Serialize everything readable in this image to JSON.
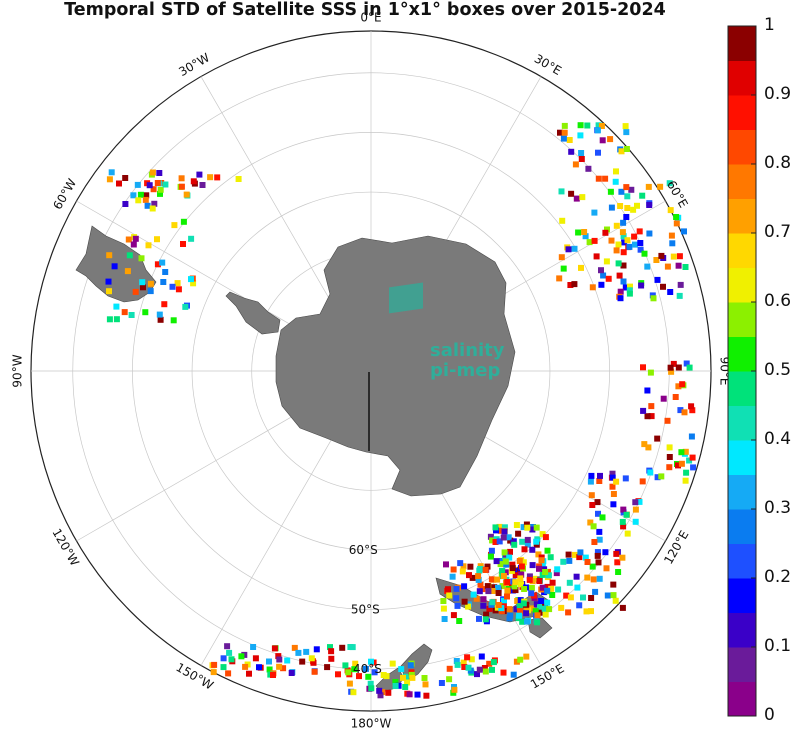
{
  "title": "Temporal STD of Satellite SSS in 1°x1° boxes over 2015-2024",
  "logo": {
    "line1": "salinity",
    "line2": "pi-mep",
    "color": "#2fae9a"
  },
  "longitude_labels": [
    {
      "id": "lon-0",
      "text": "0°E",
      "lon": 0
    },
    {
      "id": "lon-30e",
      "text": "30°E",
      "lon": 30
    },
    {
      "id": "lon-60e",
      "text": "60°E",
      "lon": 60
    },
    {
      "id": "lon-90e",
      "text": "90°E",
      "lon": 90
    },
    {
      "id": "lon-120e",
      "text": "120°E",
      "lon": 120
    },
    {
      "id": "lon-150e",
      "text": "150°E",
      "lon": 150
    },
    {
      "id": "lon-180w",
      "text": "180°W",
      "lon": 180
    },
    {
      "id": "lon-150w",
      "text": "150°W",
      "lon": -150
    },
    {
      "id": "lon-120w",
      "text": "120°W",
      "lon": -120
    },
    {
      "id": "lon-90w",
      "text": "90°W",
      "lon": -90
    },
    {
      "id": "lon-60w",
      "text": "60°W",
      "lon": -60
    },
    {
      "id": "lon-30w",
      "text": "30°W",
      "lon": -30
    }
  ],
  "latitude_labels": [
    {
      "id": "lat-60s",
      "text": "60°S",
      "lat": -60
    },
    {
      "id": "lat-50s",
      "text": "50°S",
      "lat": -50
    },
    {
      "id": "lat-40s",
      "text": "40°S",
      "lat": -40
    }
  ],
  "colorbar": {
    "min": 0,
    "max": 1,
    "step": 0.05,
    "tick_labels": [
      "1",
      "0.9",
      "0.8",
      "0.7",
      "0.6",
      "0.5",
      "0.4",
      "0.3",
      "0.2",
      "0.1",
      "0"
    ],
    "colors": [
      "#8a008a",
      "#6a1b9a",
      "#3a00c8",
      "#0000ff",
      "#1e50ff",
      "#0a7cf0",
      "#15aaf5",
      "#00e8ff",
      "#10e0b4",
      "#00e27a",
      "#10f000",
      "#8cf000",
      "#f0f000",
      "#ffd800",
      "#ffa000",
      "#ff7800",
      "#ff4800",
      "#ff1000",
      "#e00000",
      "#8b0000"
    ]
  },
  "colors": {
    "land": "#7a7a7a",
    "grid": "#c8c8c8",
    "frame": "#222222"
  }
}
